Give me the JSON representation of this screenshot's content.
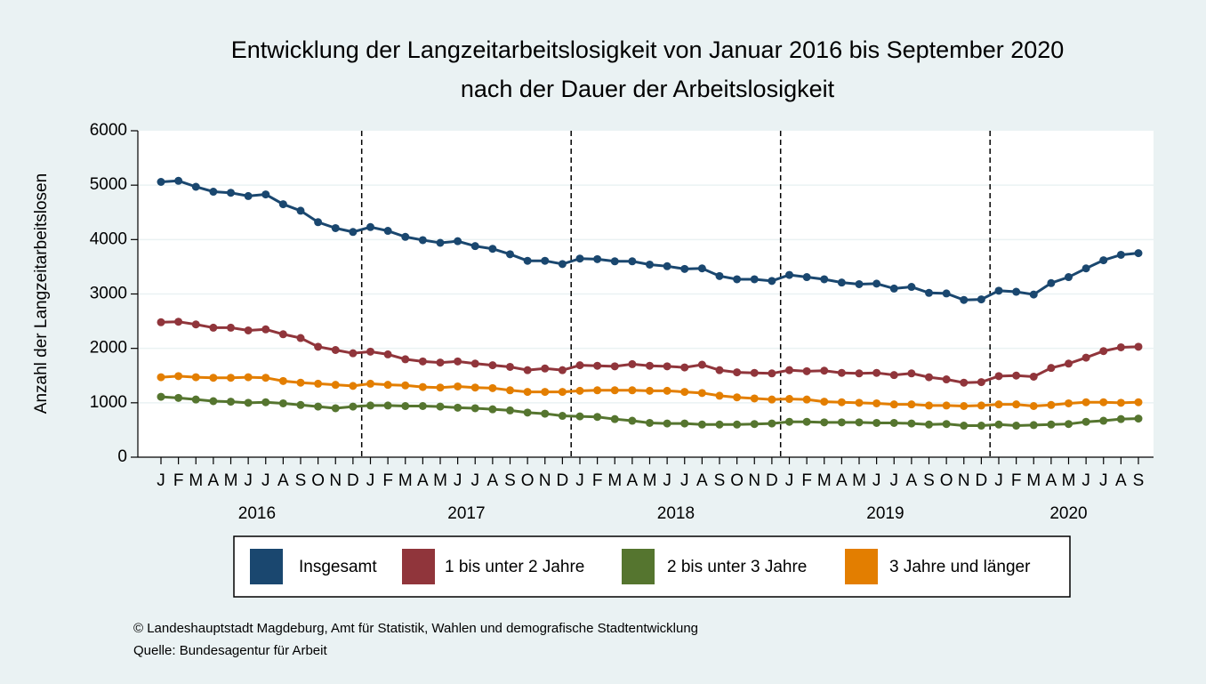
{
  "chart_data": {
    "type": "line",
    "title": [
      "Entwicklung der Langzeitarbeitslosigkeit von Januar 2016 bis September 2020",
      "nach der Dauer der Arbeitslosigkeit"
    ],
    "y_label": "Anzahl der Langzeitarbeitslosen",
    "categories": [
      "J",
      "F",
      "M",
      "A",
      "M",
      "J",
      "J",
      "A",
      "S",
      "O",
      "N",
      "D",
      "J",
      "F",
      "M",
      "A",
      "M",
      "J",
      "J",
      "A",
      "S",
      "O",
      "N",
      "D",
      "J",
      "F",
      "M",
      "A",
      "M",
      "J",
      "J",
      "A",
      "S",
      "O",
      "N",
      "D",
      "J",
      "F",
      "M",
      "A",
      "M",
      "J",
      "J",
      "A",
      "S",
      "O",
      "N",
      "D",
      "J",
      "F",
      "M",
      "A",
      "M",
      "J",
      "J",
      "A",
      "S"
    ],
    "years": [
      "2016",
      "2017",
      "2018",
      "2019",
      "2020"
    ],
    "ylim": [
      0,
      6000
    ],
    "yticks": [
      0,
      1000,
      2000,
      3000,
      4000,
      5000,
      6000
    ],
    "grid": true,
    "series": [
      {
        "name": "Insgesamt",
        "color": "#1a476f",
        "values": [
          5060,
          5080,
          4970,
          4880,
          4860,
          4800,
          4830,
          4650,
          4530,
          4320,
          4210,
          4140,
          4230,
          4160,
          4050,
          3990,
          3940,
          3970,
          3880,
          3830,
          3730,
          3610,
          3610,
          3550,
          3650,
          3640,
          3600,
          3600,
          3540,
          3510,
          3460,
          3470,
          3330,
          3270,
          3270,
          3240,
          3350,
          3310,
          3270,
          3210,
          3180,
          3190,
          3100,
          3130,
          3020,
          3010,
          2890,
          2900,
          3060,
          3040,
          2990,
          3200,
          3310,
          3470,
          3620,
          3720,
          3750
        ]
      },
      {
        "name": "1 bis unter 2 Jahre",
        "color": "#90353b",
        "values": [
          2480,
          2490,
          2440,
          2380,
          2380,
          2330,
          2350,
          2260,
          2190,
          2030,
          1970,
          1910,
          1940,
          1890,
          1800,
          1760,
          1740,
          1760,
          1720,
          1690,
          1660,
          1600,
          1630,
          1600,
          1690,
          1680,
          1670,
          1710,
          1680,
          1670,
          1650,
          1700,
          1600,
          1560,
          1550,
          1540,
          1600,
          1580,
          1590,
          1550,
          1540,
          1550,
          1510,
          1540,
          1470,
          1430,
          1370,
          1380,
          1490,
          1500,
          1480,
          1640,
          1720,
          1830,
          1950,
          2020,
          2030
        ]
      },
      {
        "name": "2 bis unter 3 Jahre",
        "color": "#55752f",
        "values": [
          1110,
          1090,
          1060,
          1030,
          1020,
          1000,
          1010,
          990,
          960,
          930,
          900,
          930,
          950,
          950,
          940,
          940,
          930,
          910,
          900,
          880,
          860,
          820,
          800,
          760,
          750,
          740,
          700,
          670,
          630,
          620,
          620,
          600,
          600,
          600,
          610,
          620,
          650,
          650,
          640,
          640,
          640,
          630,
          630,
          620,
          600,
          610,
          580,
          580,
          600,
          580,
          590,
          600,
          610,
          650,
          670,
          700,
          710
        ]
      },
      {
        "name": "3 Jahre und länger",
        "color": "#e37e00",
        "values": [
          1470,
          1490,
          1470,
          1460,
          1460,
          1470,
          1460,
          1400,
          1370,
          1350,
          1330,
          1310,
          1350,
          1330,
          1320,
          1290,
          1280,
          1300,
          1280,
          1270,
          1230,
          1200,
          1200,
          1200,
          1220,
          1230,
          1230,
          1230,
          1220,
          1220,
          1200,
          1180,
          1130,
          1100,
          1080,
          1060,
          1070,
          1060,
          1020,
          1010,
          1000,
          990,
          970,
          970,
          950,
          950,
          940,
          950,
          970,
          970,
          940,
          960,
          990,
          1010,
          1010,
          1000,
          1010
        ]
      }
    ],
    "footer": [
      "© Landeshauptstadt Magdeburg, Amt für Statistik, Wahlen und demografische Stadtentwicklung",
      "Quelle: Bundesagentur für Arbeit"
    ]
  }
}
